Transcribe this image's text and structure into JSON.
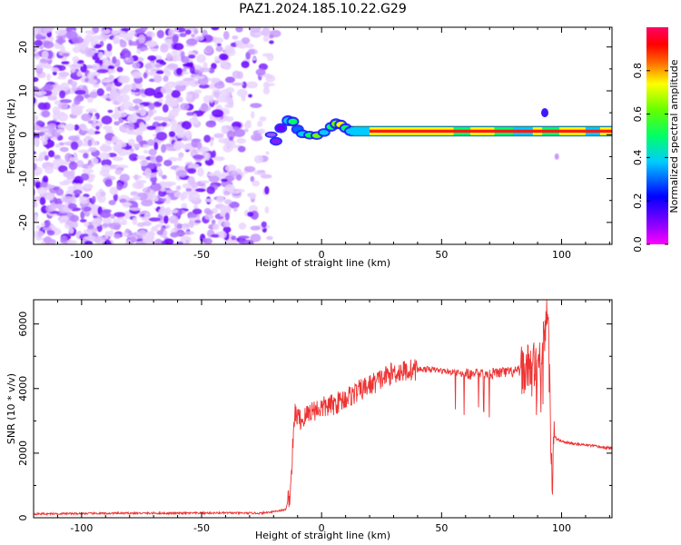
{
  "title": "PAZ1.2024.185.10.22.G29",
  "chart_data": [
    {
      "type": "heatmap",
      "xlabel": "Height of straight line (km)",
      "ylabel": "Frequency (Hz)",
      "xlim": [
        -120,
        121
      ],
      "ylim": [
        -25,
        24.5
      ],
      "xticks": [
        -100,
        -50,
        0,
        50,
        100
      ],
      "yticks": [
        -20,
        -10,
        0,
        10,
        20
      ],
      "colorbar": {
        "label": "Normalized spectral amplitude",
        "range": [
          0,
          1
        ],
        "ticks": [
          "0.0",
          "0.2",
          "0.4",
          "0.6",
          "0.8"
        ],
        "colormap": "gist_rainbow (purple-blue-cyan-green-yellow-red-pink)"
      },
      "features": {
        "noise_region_x": [
          -120,
          -20
        ],
        "coherent_start_km": -20,
        "coherent_line_x": [
          0,
          121
        ],
        "coherent_line_frequency_hz": 0.8,
        "background": "#ffffff"
      }
    },
    {
      "type": "line",
      "xlabel": "Height of straight line (km)",
      "ylabel": "SNR (10 * v/v)",
      "xlim": [
        -120,
        121
      ],
      "ylim": [
        0,
        6750
      ],
      "xticks": [
        -100,
        -50,
        0,
        50,
        100
      ],
      "yticks": [
        0,
        2000,
        4000,
        6000
      ],
      "color": "#ee3333",
      "series": [
        {
          "x": [
            -120,
            -100,
            -80,
            -60,
            -40,
            -25,
            -15,
            -13,
            -12,
            -11,
            -10,
            -8,
            -5,
            0,
            5,
            10,
            15,
            20,
            25,
            30,
            35,
            40,
            45,
            50,
            55,
            60,
            65,
            70,
            75,
            80,
            85,
            88,
            90,
            92,
            94,
            95,
            96,
            97,
            100,
            105,
            110,
            115,
            121
          ],
          "y": [
            120,
            130,
            140,
            140,
            150,
            140,
            250,
            800,
            2200,
            3300,
            3100,
            3000,
            3300,
            3400,
            3500,
            3700,
            3900,
            4100,
            4300,
            4500,
            4550,
            4600,
            4600,
            4550,
            4500,
            4450,
            4450,
            4450,
            4500,
            4500,
            4600,
            4700,
            4800,
            5200,
            6700,
            4200,
            1000,
            2500,
            2350,
            2300,
            2250,
            2200,
            2150
          ]
        }
      ]
    }
  ]
}
